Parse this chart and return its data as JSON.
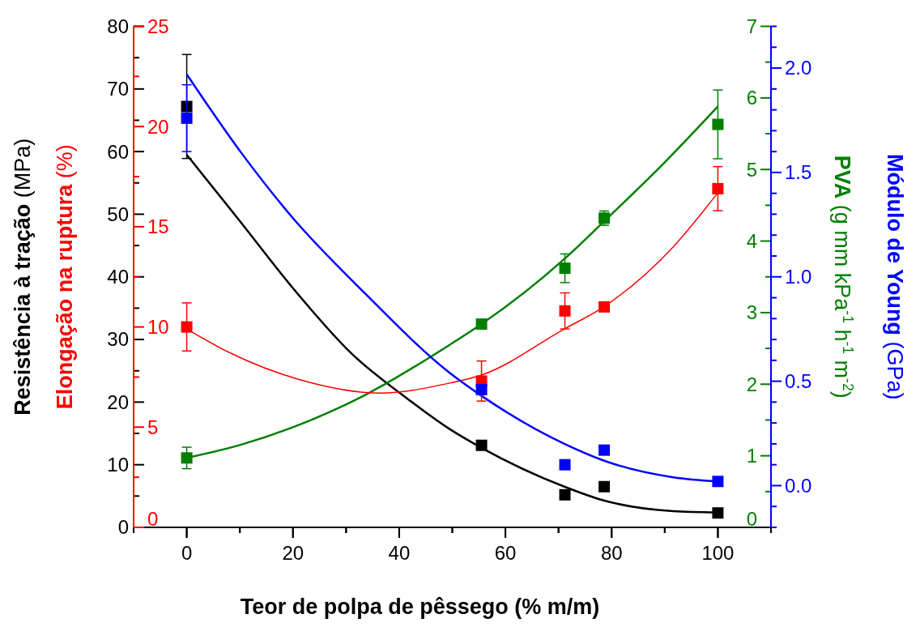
{
  "chart_data": [
    {
      "type": "scatter",
      "xlabel": "Teor de polpa de pêssego (% m/m)",
      "ylabel": "Resistência à tração (MPa)",
      "y2label": "PVA (g mm kPa$^{-1}$ h$^{-1}$ m$^{-2}$)",
      "xlim": [
        -10,
        110
      ],
      "xticks": [
        {
          "value": -10,
          "label": null
        },
        0,
        {
          "value": 10,
          "label": null
        },
        20,
        {
          "value": 30,
          "label": null
        },
        40,
        {
          "value": 50,
          "label": null
        },
        60,
        {
          "value": 70,
          "label": null
        },
        80,
        {
          "value": 90,
          "label": null
        },
        100,
        {
          "value": 110,
          "label": null
        }
      ],
      "ylim": [
        0,
        80
      ],
      "yticks": [
        0,
        {
          "value": 5,
          "label": null
        },
        10,
        {
          "value": 15,
          "label": null
        },
        20,
        {
          "value": 25,
          "label": null
        },
        30,
        {
          "value": 35,
          "label": null
        },
        40,
        {
          "value": 45,
          "label": null
        },
        50,
        {
          "value": 55,
          "label": null
        },
        60,
        {
          "value": 65,
          "label": null
        },
        70,
        {
          "value": 75,
          "label": null
        },
        80
      ],
      "y2lim": [
        0,
        7
      ],
      "y2ticks": [
        0,
        {
          "value": 0.5,
          "label": null
        },
        1,
        {
          "value": 1.5,
          "label": null
        },
        2,
        {
          "value": 2.5,
          "label": null
        },
        3,
        {
          "value": 3.5,
          "label": null
        },
        4,
        {
          "value": 4.5,
          "label": null
        },
        5,
        {
          "value": 5.5,
          "label": null
        },
        6,
        {
          "value": 6.5,
          "label": null
        },
        7
      ],
      "marker": "square",
      "series": [
        {
          "type": "line",
          "color": "#000000",
          "marker": "none",
          "x": [
            0,
            10.1,
            19.7,
            31.1,
            41.3,
            49.5,
            55.5,
            71.1,
            78.5,
            91.6,
            100
          ],
          "values": [
            59.5,
            48.8,
            38.5,
            27.7,
            20.7,
            15.7,
            12.7,
            6.5,
            4.3,
            2.6,
            2.4
          ]
        },
        {
          "type": "line",
          "axis": "y2",
          "color": "#007f00",
          "marker": "none",
          "x": [
            0,
            10,
            19.7,
            33.6,
            49.5,
            55.5,
            71.1,
            78.5,
            90,
            100
          ],
          "values": [
            0.97,
            1.15,
            1.39,
            1.85,
            2.55,
            2.84,
            3.75,
            4.27,
            5.1,
            5.88
          ]
        },
        {
          "color": "#000000",
          "x": [
            0,
            55.5,
            71.2,
            78.6,
            100
          ],
          "values": [
            67.2,
            13.1,
            5.2,
            6.5,
            2.3
          ],
          "errors": [
            8.3,
            null,
            null,
            null,
            null
          ]
        },
        {
          "axis": "y2",
          "color": "#007f00",
          "x": [
            0,
            55.5,
            71.2,
            78.6,
            100
          ],
          "values": [
            0.97,
            2.84,
            3.62,
            4.32,
            5.63
          ],
          "errors": [
            0.15,
            null,
            0.2,
            0.1,
            0.48
          ]
        }
      ]
    },
    {
      "type": "scatter",
      "ylabel": "Elongação na ruptura (%)",
      "y2label": "Módulo de Young (GPa)",
      "tick_labels": "y",
      "xlim": [
        -10,
        110
      ],
      "xticks": [
        {
          "value": -10,
          "label": null
        },
        0,
        {
          "value": 10,
          "label": null
        },
        20,
        {
          "value": 30,
          "label": null
        },
        40,
        {
          "value": 50,
          "label": null
        },
        60,
        {
          "value": 70,
          "label": null
        },
        80,
        {
          "value": 90,
          "label": null
        },
        100,
        {
          "value": 110,
          "label": null
        }
      ],
      "ylim": [
        0,
        25
      ],
      "yticks": [
        0,
        {
          "value": 2.5,
          "label": null
        },
        5,
        {
          "value": 7.5,
          "label": null
        },
        10,
        {
          "value": 12.5,
          "label": null
        },
        15,
        {
          "value": 17.5,
          "label": null
        },
        20,
        {
          "value": 22.5,
          "label": null
        },
        25
      ],
      "y2lim": [
        -0.2,
        2.2
      ],
      "y2ticks": [
        {
          "value": -0.2,
          "label": null
        },
        {
          "value": -0.1,
          "label": null
        },
        {
          "value": 0,
          "label": "0.0"
        },
        {
          "value": 0.1,
          "label": null
        },
        {
          "value": 0.2,
          "label": null
        },
        {
          "value": 0.3,
          "label": null
        },
        {
          "value": 0.4,
          "label": null
        },
        {
          "value": 0.5,
          "label": "0.5"
        },
        {
          "value": 0.6,
          "label": null
        },
        {
          "value": 0.7,
          "label": null
        },
        {
          "value": 0.8,
          "label": null
        },
        {
          "value": 0.9,
          "label": null
        },
        {
          "value": 1,
          "label": "1.0"
        },
        {
          "value": 1.1,
          "label": null
        },
        {
          "value": 1.2,
          "label": null
        },
        {
          "value": 1.3,
          "label": null
        },
        {
          "value": 1.4,
          "label": null
        },
        {
          "value": 1.5,
          "label": "1.5"
        },
        {
          "value": 1.6,
          "label": null
        },
        {
          "value": 1.7,
          "label": null
        },
        {
          "value": 1.8,
          "label": null
        },
        {
          "value": 1.9,
          "label": null
        },
        {
          "value": 2,
          "label": "2.0"
        },
        {
          "value": 2.1,
          "label": null
        },
        {
          "value": 2.2,
          "label": null
        }
      ],
      "marker": "square",
      "series": [
        {
          "type": "line",
          "color": "#ff0000",
          "marker": "none",
          "x": [
            0,
            8.2,
            20.9,
            36.5,
            49.5,
            55.5,
            71.1,
            78.5,
            91.6,
            100
          ],
          "values": [
            9.9,
            8.7,
            7.4,
            6.7,
            7.2,
            7.6,
            9.9,
            11.0,
            14.0,
            16.7
          ]
        },
        {
          "type": "line",
          "axis": "y2",
          "color": "#0000ff",
          "marker": "none",
          "x": [
            0,
            10.1,
            19.7,
            33.6,
            49.5,
            55.5,
            71.1,
            78.5,
            91.6,
            100
          ],
          "values": [
            1.97,
            1.6,
            1.29,
            0.92,
            0.54,
            0.43,
            0.2,
            0.12,
            0.04,
            0.02
          ]
        },
        {
          "color": "#ff0000",
          "x": [
            0,
            55.5,
            71.2,
            78.6,
            100
          ],
          "values": [
            10.0,
            7.3,
            10.8,
            11.0,
            16.9
          ],
          "errors": [
            1.2,
            1.0,
            0.9,
            0.2,
            1.1
          ]
        },
        {
          "axis": "y2",
          "color": "#0000ff",
          "x": [
            0,
            55.5,
            71.2,
            78.6,
            100
          ],
          "values": [
            1.76,
            0.46,
            0.1,
            0.17,
            0.02
          ],
          "errors": [
            0.16,
            null,
            null,
            null,
            null
          ]
        }
      ]
    }
  ]
}
